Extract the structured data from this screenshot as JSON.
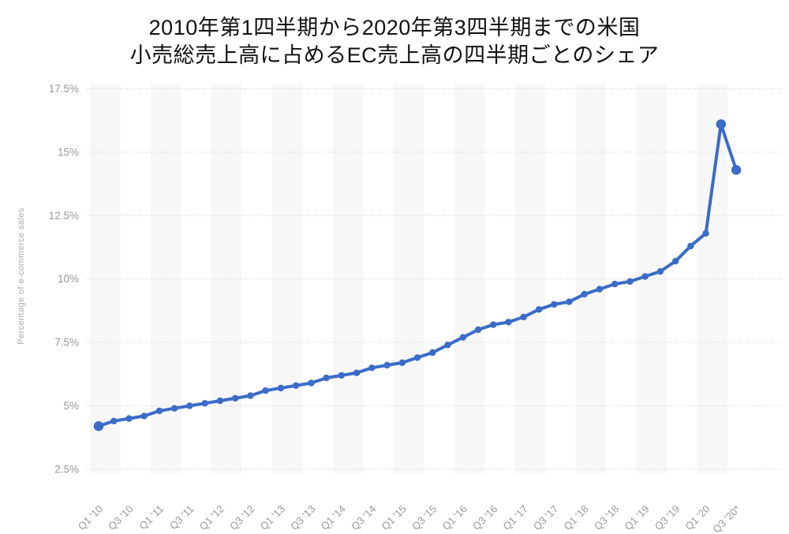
{
  "title": {
    "line1": "2010年第1四半期から2020年第3四半期までの米国",
    "line2": "小売総売上高に占めるEC売上高の四半期ごとのシェア"
  },
  "chart_data": {
    "type": "line",
    "title": "2010年第1四半期から2020年第3四半期までの米国小売総売上高に占めるEC売上高の四半期ごとのシェア",
    "xlabel": "",
    "ylabel": "Percentage of e-commerce sales",
    "ylim": [
      2.5,
      17.5
    ],
    "grid": "horizontal-dotted",
    "legend_position": "none",
    "y_tick_values": [
      2.5,
      5,
      7.5,
      10,
      12.5,
      15,
      17.5
    ],
    "y_tick_labels": [
      "2.5%",
      "5%",
      "7.5%",
      "10%",
      "12.5%",
      "15%",
      "17.5%"
    ],
    "categories": [
      "Q1 '10",
      "Q2 '10",
      "Q3 '10",
      "Q4 '10",
      "Q1 '11",
      "Q2 '11",
      "Q3 '11",
      "Q4 '11",
      "Q1 '12",
      "Q2 '12",
      "Q3 '12",
      "Q4 '12",
      "Q1 '13",
      "Q2 '13",
      "Q3 '13",
      "Q4 '13",
      "Q1 '14",
      "Q2 '14",
      "Q3 '14",
      "Q4 '14",
      "Q1 '15",
      "Q2 '15",
      "Q3 '15",
      "Q4 '15",
      "Q1 '16",
      "Q2 '16",
      "Q3 '16",
      "Q4 '16",
      "Q1 '17",
      "Q2 '17",
      "Q3 '17",
      "Q4 '17",
      "Q1 '18",
      "Q2 '18",
      "Q3 '18",
      "Q4 '18",
      "Q1 '19",
      "Q2 '19",
      "Q3 '19",
      "Q4 '19",
      "Q1 '20",
      "Q2 '20",
      "Q3 '20"
    ],
    "x_tick_labels": [
      "Q1 '10",
      "Q3 '10",
      "Q1 '11",
      "Q3 '11",
      "Q1 '12",
      "Q3 '12",
      "Q1 '13",
      "Q3 '13",
      "Q1 '14",
      "Q3 '14",
      "Q1 '15",
      "Q3 '15",
      "Q1 '16",
      "Q3 '16",
      "Q1 '17",
      "Q3 '17",
      "Q1 '18",
      "Q3 '18",
      "Q1 '19",
      "Q3 '19",
      "Q1 '20",
      "Q3 '20*"
    ],
    "x_tick_every": 2,
    "series": [
      {
        "name": "Percentage of e-commerce sales",
        "values": [
          4.2,
          4.4,
          4.5,
          4.6,
          4.8,
          4.9,
          5.0,
          5.1,
          5.2,
          5.3,
          5.4,
          5.6,
          5.7,
          5.8,
          5.9,
          6.1,
          6.2,
          6.3,
          6.5,
          6.6,
          6.7,
          6.9,
          7.1,
          7.4,
          7.7,
          8.0,
          8.2,
          8.3,
          8.5,
          8.8,
          9.0,
          9.1,
          9.4,
          9.6,
          9.8,
          9.9,
          10.1,
          10.3,
          10.7,
          11.3,
          11.8,
          16.1,
          14.3
        ]
      }
    ],
    "emphasized_point_indices": [
      0,
      41,
      42
    ],
    "colors": {
      "line": "#3A6CC8",
      "marker": "#3A6CC8",
      "gridline": "#cccccc",
      "stripe": "#f7f7f7",
      "tick_text": "#999999",
      "axis_title_text": "#aaaaaa",
      "title_text": "#111111",
      "background": "#ffffff"
    }
  }
}
